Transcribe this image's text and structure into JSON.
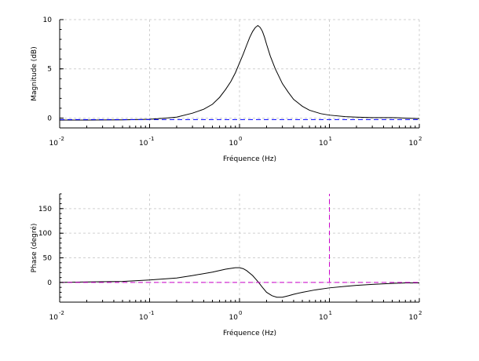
{
  "chart_data": [
    {
      "type": "line",
      "xlabel": "Fréquence (Hz)",
      "ylabel": "Magnitude (dB)",
      "x_scale": "log",
      "xlim": [
        0.01,
        100
      ],
      "ylim": [
        -1,
        10
      ],
      "x_ticks": [
        {
          "base": "10",
          "exp": "-2",
          "value": 0.01
        },
        {
          "base": "10",
          "exp": "-1",
          "value": 0.1
        },
        {
          "base": "10",
          "exp": "0",
          "value": 1
        },
        {
          "base": "10",
          "exp": "1",
          "value": 10
        },
        {
          "base": "10",
          "exp": "2",
          "value": 100
        }
      ],
      "y_ticks": [
        "0",
        "5",
        "10"
      ],
      "y_tick_values": [
        0,
        5,
        10
      ],
      "grid": true,
      "series": [
        {
          "color": "#000000",
          "style": "solid",
          "x": [
            0.01,
            0.02,
            0.05,
            0.1,
            0.15,
            0.2,
            0.3,
            0.4,
            0.5,
            0.6,
            0.7,
            0.8,
            0.9,
            1.0,
            1.1,
            1.2,
            1.3,
            1.4,
            1.5,
            1.6,
            1.7,
            1.8,
            1.9,
            2.0,
            2.2,
            2.5,
            3.0,
            3.5,
            4.0,
            5.0,
            6.0,
            8.0,
            10,
            15,
            20,
            30,
            50,
            70,
            100
          ],
          "y": [
            -0.2,
            -0.2,
            -0.18,
            -0.12,
            0.0,
            0.1,
            0.5,
            0.9,
            1.4,
            2.1,
            2.9,
            3.7,
            4.6,
            5.6,
            6.5,
            7.4,
            8.2,
            8.8,
            9.2,
            9.4,
            9.2,
            8.8,
            8.2,
            7.5,
            6.3,
            5.0,
            3.5,
            2.6,
            1.9,
            1.2,
            0.8,
            0.45,
            0.3,
            0.15,
            0.1,
            0.05,
            0.05,
            0.0,
            -0.05
          ]
        },
        {
          "color": "#0000ff",
          "style": "dashed",
          "x": [
            0.01,
            100
          ],
          "y": [
            -0.15,
            -0.15
          ]
        }
      ]
    },
    {
      "type": "line",
      "xlabel": "Fréquence (Hz)",
      "ylabel": "Phase (degré)",
      "x_scale": "log",
      "xlim": [
        0.01,
        100
      ],
      "ylim": [
        -40,
        180
      ],
      "x_ticks": [
        {
          "base": "10",
          "exp": "-2",
          "value": 0.01
        },
        {
          "base": "10",
          "exp": "-1",
          "value": 0.1
        },
        {
          "base": "10",
          "exp": "0",
          "value": 1
        },
        {
          "base": "10",
          "exp": "1",
          "value": 10
        },
        {
          "base": "10",
          "exp": "2",
          "value": 100
        }
      ],
      "y_ticks": [
        "0",
        "50",
        "100",
        "150"
      ],
      "y_tick_values": [
        0,
        50,
        100,
        150
      ],
      "grid": true,
      "series": [
        {
          "color": "#000000",
          "style": "solid",
          "x": [
            0.01,
            0.02,
            0.05,
            0.1,
            0.2,
            0.3,
            0.5,
            0.7,
            0.9,
            1.0,
            1.1,
            1.2,
            1.4,
            1.6,
            1.8,
            2.0,
            2.3,
            2.6,
            3.0,
            3.5,
            4.0,
            5.0,
            7.0,
            10,
            15,
            20,
            30,
            50,
            70,
            100
          ],
          "y": [
            0,
            1,
            2,
            5,
            9,
            14,
            21,
            27,
            30,
            30,
            28,
            24,
            14,
            2,
            -10,
            -20,
            -27,
            -30,
            -30,
            -27,
            -24,
            -20,
            -15,
            -11,
            -8,
            -6,
            -4,
            -2,
            -1,
            -1
          ]
        },
        {
          "color": "#cc00cc",
          "style": "dashed",
          "x": [
            0.01,
            100
          ],
          "y": [
            0,
            0
          ]
        },
        {
          "color": "#cc00cc",
          "style": "dashed",
          "x": [
            10,
            10
          ],
          "y": [
            0,
            180
          ]
        }
      ]
    }
  ]
}
